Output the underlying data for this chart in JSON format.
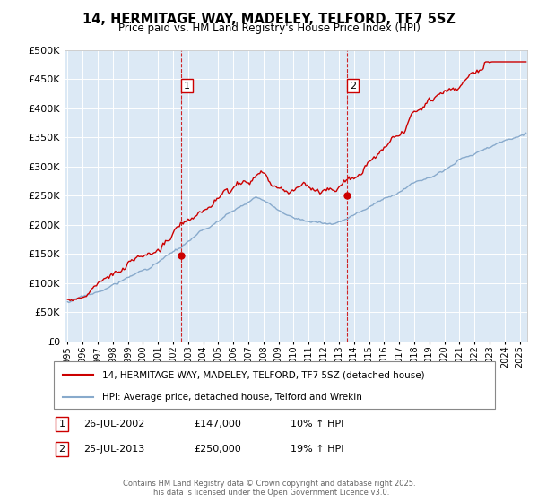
{
  "title": "14, HERMITAGE WAY, MADELEY, TELFORD, TF7 5SZ",
  "subtitle": "Price paid vs. HM Land Registry's House Price Index (HPI)",
  "hpi_label": "HPI: Average price, detached house, Telford and Wrekin",
  "price_label": "14, HERMITAGE WAY, MADELEY, TELFORD, TF7 5SZ (detached house)",
  "price_color": "#cc0000",
  "hpi_color": "#88aacc",
  "plot_bg": "#dce9f5",
  "vline_color": "#cc0000",
  "marker_color": "#cc0000",
  "ann1_date": 2002.555,
  "ann1_value": 147000,
  "ann1_label": "1",
  "ann1_table_date": "26-JUL-2002",
  "ann1_price": "£147,000",
  "ann1_hpi_pct": "10% ↑ HPI",
  "ann2_date": 2013.555,
  "ann2_value": 250000,
  "ann2_label": "2",
  "ann2_table_date": "25-JUL-2013",
  "ann2_price": "£250,000",
  "ann2_hpi_pct": "19% ↑ HPI",
  "ylim": [
    0,
    500000
  ],
  "yticks": [
    0,
    50000,
    100000,
    150000,
    200000,
    250000,
    300000,
    350000,
    400000,
    450000,
    500000
  ],
  "footer": "Contains HM Land Registry data © Crown copyright and database right 2025.\nThis data is licensed under the Open Government Licence v3.0.",
  "xmin": 1994.8,
  "xmax": 2025.5
}
